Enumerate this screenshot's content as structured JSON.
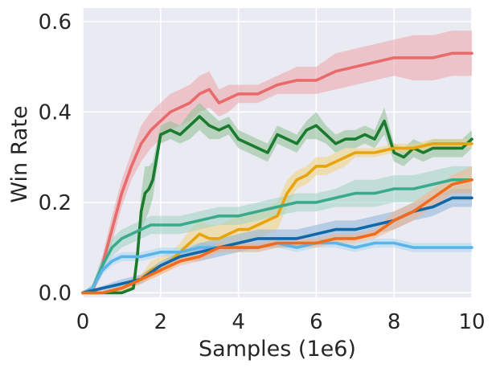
{
  "chart_data": {
    "type": "line",
    "xlabel": "Samples (1e6)",
    "ylabel": "Win Rate",
    "xlim": [
      0,
      10
    ],
    "ylim": [
      -0.01,
      0.63
    ],
    "xticks": [
      "0",
      "2",
      "4",
      "6",
      "8",
      "10"
    ],
    "yticks": [
      "0.0",
      "0.2",
      "0.4",
      "0.6"
    ],
    "grid": true,
    "background": "#eaeaf2",
    "series": [
      {
        "color": "#e86a6a",
        "band_color": "#eda3a8",
        "x": [
          0,
          0.25,
          0.5,
          0.75,
          1,
          1.25,
          1.5,
          1.75,
          2,
          2.25,
          2.5,
          2.75,
          3,
          3.25,
          3.5,
          3.75,
          4,
          4.5,
          5,
          5.5,
          6,
          6.5,
          7,
          7.5,
          8,
          8.5,
          9,
          9.5,
          10
        ],
        "y": [
          0,
          0.005,
          0.06,
          0.14,
          0.22,
          0.28,
          0.33,
          0.36,
          0.38,
          0.4,
          0.41,
          0.42,
          0.44,
          0.45,
          0.42,
          0.43,
          0.44,
          0.44,
          0.46,
          0.47,
          0.47,
          0.49,
          0.5,
          0.51,
          0.52,
          0.52,
          0.52,
          0.53,
          0.53
        ],
        "band": [
          0,
          0.005,
          0.02,
          0.03,
          0.03,
          0.03,
          0.04,
          0.04,
          0.04,
          0.04,
          0.04,
          0.04,
          0.04,
          0.04,
          0.03,
          0.03,
          0.02,
          0.02,
          0.02,
          0.03,
          0.03,
          0.04,
          0.04,
          0.04,
          0.04,
          0.05,
          0.05,
          0.05,
          0.05
        ]
      },
      {
        "color": "#1a7a2e",
        "band_color": "#8cbf93",
        "x": [
          0,
          0.5,
          1,
          1.3,
          1.4,
          1.5,
          1.6,
          1.7,
          1.8,
          2,
          2.25,
          2.5,
          2.75,
          3,
          3.25,
          3.5,
          3.75,
          4,
          4.25,
          4.5,
          4.75,
          5,
          5.25,
          5.5,
          5.75,
          6,
          6.25,
          6.5,
          6.75,
          7,
          7.25,
          7.5,
          7.75,
          8,
          8.25,
          8.5,
          8.75,
          9,
          9.25,
          9.5,
          9.75,
          10
        ],
        "y": [
          0,
          0,
          0,
          0.01,
          0.08,
          0.18,
          0.22,
          0.23,
          0.25,
          0.35,
          0.36,
          0.35,
          0.37,
          0.39,
          0.37,
          0.36,
          0.37,
          0.34,
          0.33,
          0.32,
          0.31,
          0.35,
          0.34,
          0.33,
          0.36,
          0.37,
          0.35,
          0.33,
          0.34,
          0.34,
          0.35,
          0.34,
          0.38,
          0.31,
          0.3,
          0.32,
          0.31,
          0.32,
          0.32,
          0.32,
          0.32,
          0.34
        ],
        "band": [
          0,
          0,
          0,
          0,
          0.02,
          0.04,
          0.06,
          0.05,
          0.04,
          0.02,
          0.02,
          0.02,
          0.03,
          0.03,
          0.03,
          0.02,
          0.02,
          0.02,
          0.02,
          0.02,
          0.02,
          0.02,
          0.02,
          0.02,
          0.02,
          0.03,
          0.02,
          0.02,
          0.02,
          0.02,
          0.02,
          0.02,
          0.03,
          0.02,
          0.02,
          0.02,
          0.02,
          0.02,
          0.02,
          0.02,
          0.02,
          0.02
        ]
      },
      {
        "color": "#e8a40c",
        "band_color": "#f2d27e",
        "x": [
          0,
          0.5,
          1,
          1.25,
          1.5,
          1.75,
          2,
          2.25,
          2.5,
          2.75,
          3,
          3.25,
          3.5,
          3.75,
          4,
          4.25,
          4.5,
          4.75,
          5,
          5.25,
          5.5,
          5.75,
          6,
          6.25,
          6.5,
          6.75,
          7,
          7.5,
          8,
          8.5,
          9,
          9.5,
          10
        ],
        "y": [
          0,
          0,
          0.01,
          0.02,
          0.03,
          0.05,
          0.06,
          0.07,
          0.09,
          0.11,
          0.13,
          0.12,
          0.12,
          0.13,
          0.14,
          0.14,
          0.15,
          0.16,
          0.17,
          0.22,
          0.25,
          0.26,
          0.28,
          0.28,
          0.29,
          0.3,
          0.31,
          0.31,
          0.32,
          0.32,
          0.33,
          0.33,
          0.33
        ],
        "band": [
          0,
          0,
          0.01,
          0.01,
          0.01,
          0.02,
          0.02,
          0.02,
          0.02,
          0.03,
          0.03,
          0.03,
          0.03,
          0.03,
          0.03,
          0.03,
          0.03,
          0.03,
          0.03,
          0.03,
          0.02,
          0.02,
          0.02,
          0.02,
          0.02,
          0.02,
          0.01,
          0.01,
          0.01,
          0.01,
          0.01,
          0.01,
          0.01
        ]
      },
      {
        "color": "#3aaa8c",
        "band_color": "#9dd2c2",
        "x": [
          0,
          0.25,
          0.5,
          0.75,
          1,
          1.25,
          1.5,
          1.75,
          2,
          2.5,
          3,
          3.5,
          4,
          4.5,
          5,
          5.5,
          6,
          6.5,
          7,
          7.5,
          8,
          8.5,
          9,
          9.5,
          10
        ],
        "y": [
          0,
          0.01,
          0.06,
          0.1,
          0.12,
          0.13,
          0.14,
          0.15,
          0.15,
          0.15,
          0.16,
          0.17,
          0.17,
          0.18,
          0.19,
          0.2,
          0.2,
          0.21,
          0.22,
          0.22,
          0.23,
          0.23,
          0.24,
          0.25,
          0.25
        ],
        "band": [
          0,
          0.01,
          0.02,
          0.02,
          0.02,
          0.02,
          0.02,
          0.02,
          0.02,
          0.02,
          0.02,
          0.02,
          0.02,
          0.02,
          0.02,
          0.02,
          0.02,
          0.02,
          0.03,
          0.03,
          0.03,
          0.03,
          0.03,
          0.03,
          0.03
        ]
      },
      {
        "color": "#5ab4e8",
        "band_color": "#a9d7f2",
        "x": [
          0,
          0.25,
          0.5,
          0.75,
          1,
          1.5,
          2,
          2.5,
          3,
          3.5,
          4,
          4.5,
          5,
          5.5,
          6,
          6.5,
          7,
          7.5,
          8,
          8.5,
          9,
          9.5,
          10
        ],
        "y": [
          0,
          0.01,
          0.05,
          0.07,
          0.08,
          0.08,
          0.09,
          0.09,
          0.1,
          0.1,
          0.1,
          0.1,
          0.11,
          0.1,
          0.11,
          0.11,
          0.1,
          0.11,
          0.11,
          0.1,
          0.1,
          0.1,
          0.1
        ],
        "band": [
          0,
          0.005,
          0.01,
          0.01,
          0.01,
          0.01,
          0.01,
          0.01,
          0.01,
          0.01,
          0.01,
          0.01,
          0.01,
          0.01,
          0.01,
          0.01,
          0.01,
          0.01,
          0.01,
          0.01,
          0.01,
          0.01,
          0.01
        ]
      },
      {
        "color": "#1068a8",
        "band_color": "#8ab3d8",
        "x": [
          0,
          0.5,
          1,
          1.5,
          2,
          2.5,
          3,
          3.5,
          4,
          4.5,
          5,
          5.5,
          6,
          6.5,
          7,
          7.5,
          8,
          8.5,
          9,
          9.5,
          10
        ],
        "y": [
          0,
          0.01,
          0.02,
          0.03,
          0.06,
          0.08,
          0.09,
          0.1,
          0.11,
          0.12,
          0.12,
          0.12,
          0.13,
          0.14,
          0.14,
          0.15,
          0.16,
          0.18,
          0.19,
          0.21,
          0.21
        ],
        "band": [
          0,
          0.005,
          0.01,
          0.01,
          0.01,
          0.01,
          0.02,
          0.02,
          0.02,
          0.02,
          0.02,
          0.02,
          0.02,
          0.02,
          0.02,
          0.02,
          0.02,
          0.02,
          0.02,
          0.02,
          0.02
        ]
      },
      {
        "color": "#f26a1b",
        "band_color": "#f6b489",
        "x": [
          0,
          0.5,
          1,
          1.5,
          2,
          2.5,
          3,
          3.5,
          4,
          4.5,
          5,
          5.5,
          6,
          6.5,
          7,
          7.5,
          8,
          8.5,
          9,
          9.5,
          10
        ],
        "y": [
          0,
          0,
          0.01,
          0.03,
          0.05,
          0.07,
          0.08,
          0.1,
          0.1,
          0.1,
          0.11,
          0.11,
          0.11,
          0.12,
          0.12,
          0.13,
          0.16,
          0.18,
          0.21,
          0.24,
          0.25
        ],
        "band": [
          0,
          0,
          0.005,
          0.01,
          0.01,
          0.01,
          0.01,
          0.01,
          0.01,
          0.01,
          0.01,
          0.01,
          0.01,
          0.01,
          0.01,
          0.01,
          0.02,
          0.02,
          0.02,
          0.02,
          0.03
        ]
      }
    ]
  }
}
